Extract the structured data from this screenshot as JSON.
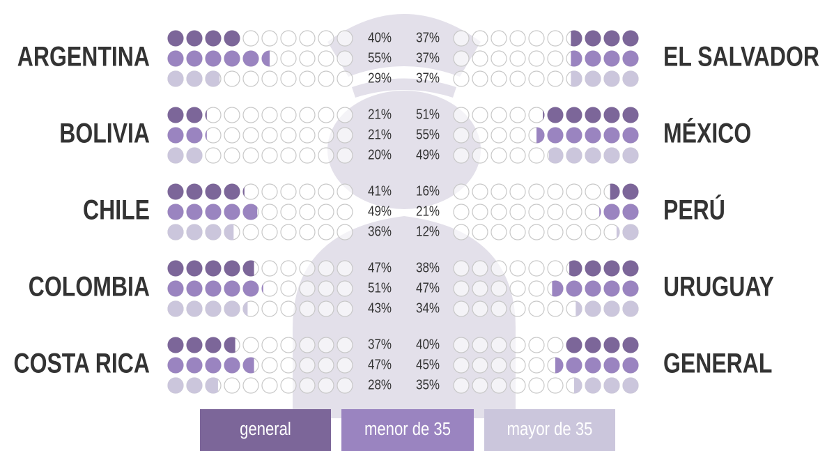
{
  "chart_data": {
    "type": "dot-rows",
    "series": [
      {
        "name": "general",
        "color": "#7c6699"
      },
      {
        "name": "menor de 35",
        "color": "#9a84c0"
      },
      {
        "name": "mayor de 35",
        "color": "#cbc6dc"
      }
    ],
    "left": [
      {
        "name": "ARGENTINA",
        "values": [
          40,
          55,
          29
        ],
        "value_labels": [
          "40%",
          "55%",
          "29%"
        ]
      },
      {
        "name": "BOLIVIA",
        "values": [
          21,
          21,
          20
        ],
        "value_labels": [
          "21%",
          "21%",
          "20%"
        ]
      },
      {
        "name": "CHILE",
        "values": [
          41,
          49,
          36
        ],
        "value_labels": [
          "41%",
          "49%",
          "36%"
        ]
      },
      {
        "name": "COLOMBIA",
        "values": [
          47,
          51,
          43
        ],
        "value_labels": [
          "47%",
          "51%",
          "43%"
        ]
      },
      {
        "name": "COSTA RICA",
        "values": [
          37,
          47,
          28
        ],
        "value_labels": [
          "37%",
          "47%",
          "28%"
        ]
      }
    ],
    "right": [
      {
        "name": "EL SALVADOR",
        "values": [
          37,
          37,
          37
        ],
        "value_labels": [
          "37%",
          "37%",
          "37%"
        ]
      },
      {
        "name": "MÉXICO",
        "values": [
          51,
          55,
          49
        ],
        "value_labels": [
          "51%",
          "55%",
          "49%"
        ]
      },
      {
        "name": "PERÚ",
        "values": [
          16,
          21,
          12
        ],
        "value_labels": [
          "16%",
          "21%",
          "12%"
        ]
      },
      {
        "name": "URUGUAY",
        "values": [
          38,
          47,
          34
        ],
        "value_labels": [
          "38%",
          "47%",
          "34%"
        ]
      },
      {
        "name": "GENERAL",
        "values": [
          40,
          45,
          35
        ],
        "value_labels": [
          "40%",
          "45%",
          "35%"
        ]
      }
    ]
  }
}
